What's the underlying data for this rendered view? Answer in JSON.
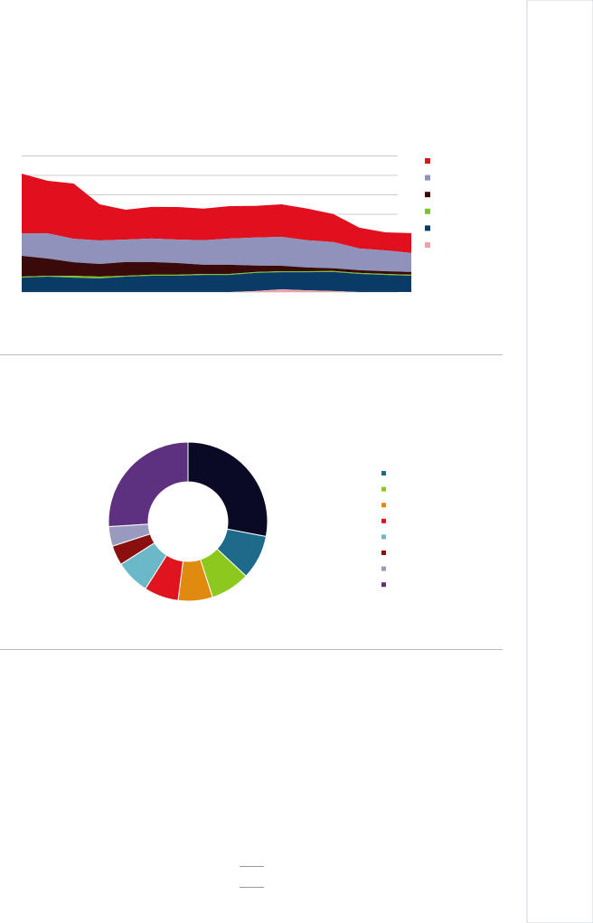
{
  "chart_data": [
    {
      "type": "area",
      "ylim": [
        0,
        70
      ],
      "yticks": [
        0,
        10,
        20,
        30,
        40,
        50,
        60,
        70
      ],
      "grid": true,
      "series": [
        {
          "color": "#f0a0a8",
          "values": [
            0,
            0,
            0,
            0,
            0,
            0,
            0,
            0,
            0,
            0.5,
            1.4,
            0.9,
            0.5,
            0,
            0,
            0
          ]
        },
        {
          "color": "#0a3a66",
          "values": [
            7.4,
            7.9,
            7.4,
            7.0,
            7.9,
            8.4,
            8.4,
            8.8,
            8.8,
            9.3,
            8.8,
            9.3,
            9.8,
            9.3,
            8.8,
            8.4
          ]
        },
        {
          "color": "#7cc32a",
          "values": [
            0.5,
            0.5,
            0.9,
            0.9,
            0.5,
            0.5,
            0.5,
            0.5,
            0.5,
            0.5,
            0.5,
            0.5,
            0.5,
            0.5,
            0.5,
            0.5
          ]
        },
        {
          "color": "#3a0a0a",
          "values": [
            10.7,
            8.8,
            7.0,
            6.5,
            7.0,
            6.5,
            6.0,
            4.7,
            4.7,
            3.3,
            2.8,
            1.9,
            1.4,
            1.4,
            1.4,
            1.4
          ]
        },
        {
          "color": "#8f92bb",
          "values": [
            11.6,
            13.0,
            12.1,
            12.1,
            11.6,
            12.1,
            12.1,
            12.6,
            13.5,
            14.4,
            14.9,
            14.0,
            13.5,
            11.2,
            10.7,
            9.8
          ]
        },
        {
          "color": "#e0101e",
          "values": [
            30.7,
            27.0,
            28.4,
            18.6,
            15.3,
            16.3,
            16.7,
            16.3,
            16.7,
            16.3,
            16.7,
            16.3,
            14.4,
            10.7,
            9.3,
            10.2
          ]
        }
      ]
    },
    {
      "type": "donut",
      "values": [
        28,
        9,
        8,
        7,
        7,
        7,
        4,
        4,
        26
      ],
      "colors": [
        "#0a0a24",
        "#1e6a8a",
        "#8cc81e",
        "#e08a10",
        "#e0141e",
        "#6ab8c8",
        "#8a1010",
        "#9a9ac0",
        "#5e3080"
      ]
    }
  ]
}
